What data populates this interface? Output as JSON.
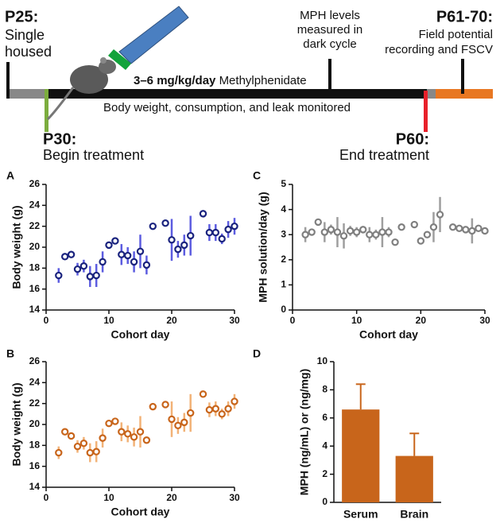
{
  "timeline": {
    "p25": {
      "label": "P25:",
      "lines": [
        "Single",
        "housed"
      ]
    },
    "mph_levels": {
      "lines": [
        "MPH levels",
        "measured in",
        "dark cycle"
      ]
    },
    "p61": {
      "label": "P61-70:",
      "lines": [
        "Field potential",
        "recording and FSCV"
      ]
    },
    "dose": "3–6 mg/kg/day",
    "drug": "Methylphenidate",
    "monitored": "Body weight, consumption, and leak monitored",
    "p30": {
      "label": "P30:",
      "text": "Begin treatment"
    },
    "p60": {
      "label": "P60:",
      "text": "End treatment"
    }
  },
  "chart_data": [
    {
      "type": "scatter",
      "panel": "A",
      "xlabel": "Cohort day",
      "ylabel": "Body weight (g)",
      "color": "#1a237e",
      "error_color": "#5c5ce0",
      "x": [
        2,
        3,
        4,
        5,
        6,
        7,
        8,
        9,
        10,
        11,
        12,
        13,
        14,
        15,
        16,
        17,
        19,
        20,
        21,
        22,
        23,
        25,
        26,
        27,
        28,
        29,
        30
      ],
      "values": [
        17.3,
        19.1,
        19.3,
        17.9,
        18.2,
        17.2,
        17.3,
        18.6,
        20.2,
        20.6,
        19.3,
        19.2,
        18.6,
        19.6,
        18.3,
        22.0,
        22.3,
        20.7,
        19.8,
        20.2,
        21.1,
        23.2,
        21.4,
        21.4,
        20.8,
        21.7,
        22.0
      ],
      "errors": [
        0.7,
        0.2,
        0.2,
        0.6,
        0.6,
        1.0,
        1.1,
        1.0,
        0.2,
        0.2,
        1.0,
        0.8,
        1.0,
        1.6,
        0.9,
        0.2,
        0.2,
        2.0,
        0.8,
        1.0,
        1.9,
        0.2,
        0.8,
        0.8,
        0.5,
        0.8,
        0.8
      ],
      "xlim": [
        0,
        30
      ],
      "ylim": [
        14,
        26
      ],
      "xticks": [
        0,
        10,
        20,
        30
      ],
      "yticks": [
        14,
        16,
        18,
        20,
        22,
        24,
        26
      ]
    },
    {
      "type": "scatter",
      "panel": "C",
      "xlabel": "Cohort day",
      "ylabel": "MPH solution/day (g)",
      "color": "#7f7f7f",
      "error_color": "#9e9e9e",
      "x": [
        2,
        3,
        4,
        5,
        6,
        7,
        8,
        9,
        10,
        11,
        12,
        13,
        14,
        15,
        16,
        17,
        19,
        20,
        21,
        22,
        23,
        25,
        26,
        27,
        28,
        29,
        30
      ],
      "values": [
        3.0,
        3.1,
        3.5,
        3.1,
        3.2,
        3.1,
        2.95,
        3.15,
        3.1,
        3.2,
        3.0,
        3.0,
        3.1,
        3.1,
        2.7,
        3.3,
        3.4,
        2.75,
        3.0,
        3.3,
        3.8,
        3.3,
        3.25,
        3.2,
        3.15,
        3.25,
        3.15
      ],
      "errors": [
        0.3,
        0.1,
        0.1,
        0.4,
        0.2,
        0.6,
        0.5,
        0.2,
        0.2,
        0.1,
        0.3,
        0.2,
        0.6,
        0.2,
        0.1,
        0.1,
        0.1,
        0.1,
        0.1,
        0.6,
        0.7,
        0.1,
        0.1,
        0.1,
        0.5,
        0.1,
        0.1
      ],
      "xlim": [
        0,
        30
      ],
      "ylim": [
        0,
        5
      ],
      "xticks": [
        0,
        10,
        20,
        30
      ],
      "yticks": [
        0,
        1,
        2,
        3,
        4,
        5
      ]
    },
    {
      "type": "scatter",
      "panel": "B",
      "xlabel": "Cohort day",
      "ylabel": "Body weight (g)",
      "color": "#c8651b",
      "error_color": "#f2b277",
      "x": [
        2,
        3,
        4,
        5,
        6,
        7,
        8,
        9,
        10,
        11,
        12,
        13,
        14,
        15,
        16,
        17,
        19,
        20,
        21,
        22,
        23,
        25,
        26,
        27,
        28,
        29,
        30
      ],
      "values": [
        17.3,
        19.3,
        18.9,
        17.9,
        18.2,
        17.3,
        17.4,
        18.7,
        20.1,
        20.3,
        19.3,
        19.1,
        18.8,
        19.3,
        18.5,
        21.7,
        21.9,
        20.5,
        19.9,
        20.2,
        21.1,
        22.9,
        21.4,
        21.5,
        21.0,
        21.5,
        22.2
      ],
      "errors": [
        0.6,
        0.2,
        0.2,
        0.6,
        0.6,
        0.9,
        1.0,
        0.9,
        0.2,
        0.2,
        0.9,
        0.8,
        0.9,
        1.5,
        0.3,
        0.2,
        0.2,
        1.7,
        0.8,
        0.9,
        1.8,
        0.2,
        0.7,
        0.7,
        0.5,
        0.7,
        0.7
      ],
      "xlim": [
        0,
        30
      ],
      "ylim": [
        14,
        26
      ],
      "xticks": [
        0,
        10,
        20,
        30
      ],
      "yticks": [
        14,
        16,
        18,
        20,
        22,
        24,
        26
      ]
    },
    {
      "type": "bar",
      "panel": "D",
      "ylabel": "MPH (ng/mL) or (ng/mg)",
      "color": "#c8651b",
      "categories": [
        "Serum",
        "Brain"
      ],
      "values": [
        6.6,
        3.3
      ],
      "errors": [
        1.8,
        1.6
      ],
      "ylim": [
        0,
        10
      ],
      "yticks": [
        0,
        2,
        4,
        6,
        8,
        10
      ]
    }
  ]
}
